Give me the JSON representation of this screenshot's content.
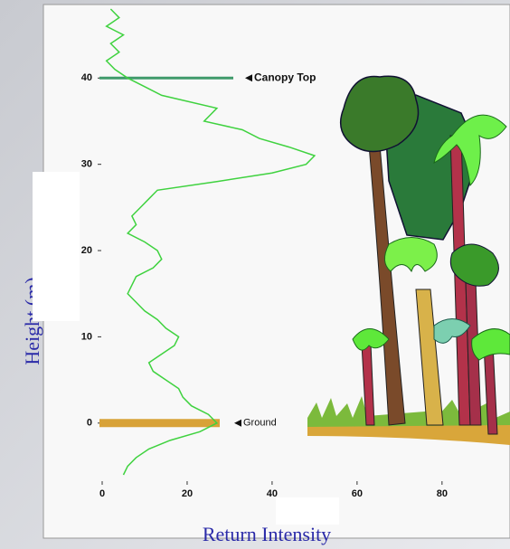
{
  "chart_data": {
    "type": "line",
    "xlabel": "Return Intensity",
    "ylabel": "Height (m)",
    "xlim": [
      0,
      96
    ],
    "ylim": [
      -6,
      48
    ],
    "xticks": [
      0,
      20,
      40,
      60,
      80
    ],
    "yticks": [
      0,
      10,
      20,
      30,
      40
    ],
    "series": [
      {
        "color": "#3fd23f",
        "x": [
          2,
          4,
          1,
          5,
          2,
          4,
          1,
          3,
          6,
          10,
          14,
          27,
          24,
          33,
          37,
          44,
          50,
          48,
          40,
          27,
          13,
          11,
          9,
          7,
          8,
          6,
          10,
          13,
          14,
          12,
          8,
          7,
          6,
          8,
          10,
          13,
          15,
          18,
          17,
          14,
          11,
          12,
          15,
          18,
          19,
          21,
          25,
          27,
          23,
          16,
          11,
          8,
          6,
          5
        ],
        "values": [
          48,
          47,
          46,
          45,
          44,
          43,
          42,
          41,
          40,
          39,
          38,
          36.5,
          35,
          34,
          33,
          32,
          31,
          30,
          29,
          28,
          27,
          26,
          25,
          24,
          23,
          22,
          21,
          20,
          19,
          18,
          17,
          16,
          15,
          14,
          13,
          12,
          11,
          10,
          9,
          8,
          7,
          6,
          5,
          4,
          3,
          2,
          1,
          0,
          -1,
          -2,
          -3,
          -4,
          -5,
          -6
        ]
      }
    ],
    "annotations": [
      {
        "text": "Canopy Top",
        "y": 40,
        "color": "#3f9a6a"
      },
      {
        "text": "Ground",
        "y": 0,
        "color": "#d8a238"
      }
    ]
  }
}
